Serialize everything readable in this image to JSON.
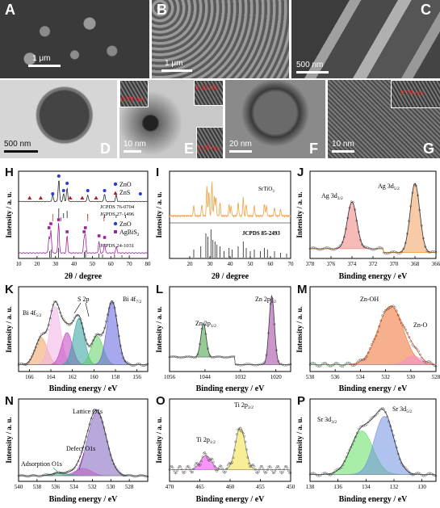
{
  "micrographs": {
    "A": {
      "label": "A",
      "scale": "1 μm"
    },
    "B": {
      "label": "B",
      "scale": "1 μm"
    },
    "C": {
      "label": "C",
      "scale": "500 nm"
    },
    "D": {
      "label": "D",
      "scale": "500 nm"
    },
    "E": {
      "label": "E",
      "scale": "10 nm",
      "inset1": "0.33 nm",
      "inset2": "0.32 nm",
      "inset3": "0.26 nm"
    },
    "F": {
      "label": "F",
      "scale": "20 nm"
    },
    "G": {
      "label": "G",
      "scale": "10 nm",
      "inset": "0.28 nm"
    }
  },
  "panel_labels": {
    "H": "H",
    "I": "I",
    "J": "J",
    "K": "K",
    "L": "L",
    "M": "M",
    "N": "N",
    "O": "O",
    "P": "P"
  },
  "axis": {
    "intensity": "Intensity / a. u.",
    "two_theta": "2θ / degree",
    "binding": "Binding energy / eV"
  },
  "chart_data": [
    {
      "panel": "H",
      "type": "line",
      "xlabel": "2θ / degree",
      "ylabel": "Intensity / a. u.",
      "xlim": [
        10,
        80
      ],
      "xticks": [
        10,
        20,
        30,
        40,
        50,
        60,
        70,
        80
      ],
      "legend_top": [
        "ZnO",
        "ZnS"
      ],
      "legend_bottom": [
        "ZnO",
        "AgBiS₂"
      ],
      "references": [
        "JCPDS 76-0704",
        "JCPDS 27-1496",
        "JCPDS 24-1031"
      ],
      "legend_colors": [
        "#2a3bd6",
        "#b02020",
        "#2a3bd6",
        "#a020a0"
      ]
    },
    {
      "panel": "I",
      "type": "line",
      "xlabel": "2θ / degree",
      "ylabel": "Intensity / a. u.",
      "xlim": [
        10,
        70
      ],
      "xticks": [
        20,
        30,
        40,
        50,
        60,
        70
      ],
      "series_label": "SrTiO3",
      "reference": "JCPDS 85-2493",
      "color": "#f0a040"
    },
    {
      "panel": "J",
      "type": "line",
      "xlabel": "Binding energy / eV",
      "ylabel": "Intensity / a. u.",
      "xlim": [
        378,
        366
      ],
      "xticks": [
        378,
        376,
        374,
        372,
        370,
        368,
        366
      ],
      "peaks": [
        {
          "name": "Ag 3d3/2",
          "center": 374.0
        },
        {
          "name": "Ag 3d5/2",
          "center": 368.0
        }
      ]
    },
    {
      "panel": "K",
      "type": "line",
      "xlabel": "Binding energy / eV",
      "ylabel": "Intensity / a. u.",
      "xlim": [
        167,
        155
      ],
      "xticks": [
        166,
        164,
        162,
        160,
        158,
        156
      ],
      "peaks": [
        {
          "name": "Bi 4f5/2",
          "center": 163.6
        },
        {
          "name": "S 2p",
          "center": 161.4
        },
        {
          "name": "Bi 4f7/2",
          "center": 158.3
        }
      ]
    },
    {
      "panel": "L",
      "type": "line",
      "xlabel": "Binding energy / eV",
      "ylabel": "Intensity / a. u.",
      "xlim": [
        1056,
        1015
      ],
      "xticks": [
        1056,
        1044,
        1032,
        1020
      ],
      "peaks": [
        {
          "name": "Zn 2p1/2",
          "center": 1044.5
        },
        {
          "name": "Zn 2p3/2",
          "center": 1021.4
        }
      ]
    },
    {
      "panel": "M",
      "type": "line",
      "xlabel": "Binding energy / eV",
      "ylabel": "Intensity / a. u.",
      "xlim": [
        538,
        528
      ],
      "xticks": [
        538,
        536,
        534,
        532,
        530,
        528
      ],
      "peaks": [
        {
          "name": "Zn-OH",
          "center": 531.6
        },
        {
          "name": "Zn-O",
          "center": 529.8
        }
      ]
    },
    {
      "panel": "N",
      "type": "line",
      "xlabel": "Binding energy / eV",
      "ylabel": "Intensity / a. u.",
      "xlim": [
        540,
        526
      ],
      "xticks": [
        540,
        538,
        536,
        534,
        532,
        530,
        528
      ],
      "peaks": [
        {
          "name": "Lattice O1s",
          "center": 531.5
        },
        {
          "name": "Defect O1s",
          "center": 533.0
        },
        {
          "name": "Adsorption O1s",
          "center": 535.5
        }
      ]
    },
    {
      "panel": "O",
      "type": "line",
      "xlabel": "Binding energy / eV",
      "ylabel": "Intensity / a. u.",
      "xlim": [
        470,
        450
      ],
      "xticks": [
        470,
        465,
        460,
        455,
        450
      ],
      "peaks": [
        {
          "name": "Ti 2p1/2",
          "center": 464.0
        },
        {
          "name": "Ti 2p3/2",
          "center": 458.3
        }
      ]
    },
    {
      "panel": "P",
      "type": "line",
      "xlabel": "Binding energy / eV",
      "ylabel": "Intensity / a. u.",
      "xlim": [
        138,
        129
      ],
      "xticks": [
        138,
        136,
        134,
        132,
        130
      ],
      "peaks": [
        {
          "name": "Sr 3d3/2",
          "center": 134.3
        },
        {
          "name": "Sr 3d5/2",
          "center": 132.7
        }
      ]
    }
  ],
  "peak_labels": {
    "H_legend": [
      "ZnO",
      "ZnS"
    ],
    "H_legend2": [
      "ZnO",
      "AgBiS"
    ],
    "H_sub": "2",
    "H_ref": [
      "JCPDS 76-0704",
      "JCPDS 27-1496",
      "JCPDS 24-1031"
    ],
    "I_series": "SrTiO",
    "I_sub": "3",
    "I_ref": "JCPDS 85-2493",
    "J": [
      "Ag 3d",
      "3/2",
      "Ag 3d",
      "5/2"
    ],
    "K": [
      "Bi 4f",
      "5/2",
      "S 2p",
      "Bi 4f",
      "7/2"
    ],
    "L": [
      "Zn 2p",
      "1/2",
      "Zn 2p",
      "3/2"
    ],
    "M": [
      "Zn-OH",
      "Zn-O"
    ],
    "N": [
      "Lattice O1s",
      "Defect O1s",
      "Adsorption O1s"
    ],
    "O": [
      "Ti 2p",
      "1/2",
      "Ti 2p",
      "3/2"
    ],
    "P": [
      "Sr 3d",
      "3/2",
      "Sr 3d",
      "5/2"
    ]
  }
}
